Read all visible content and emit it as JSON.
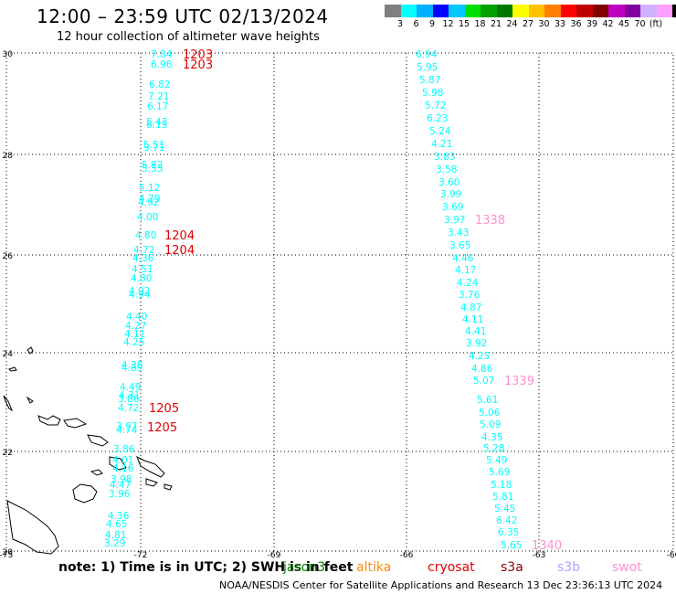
{
  "title": "12:00 – 23:59 UTC 02/13/2024",
  "subtitle": "12 hour collection of altimeter wave heights",
  "colorbar": {
    "colors": [
      "#7f7f7f",
      "#00ffff",
      "#00b0ff",
      "#0000ff",
      "#00c8ff",
      "#00e000",
      "#00a000",
      "#007800",
      "#ffff00",
      "#ffc000",
      "#ff8000",
      "#ff0000",
      "#c00000",
      "#800000",
      "#c000c0",
      "#8000a0",
      "#d0b0ff",
      "#ffa0ff",
      "#000000"
    ],
    "labels": [
      "3",
      "6",
      "9",
      "12",
      "15",
      "18",
      "21",
      "24",
      "27",
      "30",
      "33",
      "36",
      "39",
      "42",
      "45",
      "70",
      "(ft)"
    ]
  },
  "axes": {
    "lat_labels": [
      "30",
      "28",
      "26",
      "24",
      "22",
      "20"
    ],
    "lon_labels": [
      "-75",
      "-72",
      "-69",
      "-66",
      "-63",
      "-60"
    ]
  },
  "tracks": {
    "track1": [
      "7.84",
      "6.96",
      "6.82",
      "7.21",
      "6.17",
      "5.43",
      "6.15",
      "5.51",
      "5.71",
      "5.82",
      "5.53",
      "5.12",
      "4.79",
      "4.92",
      "4.00",
      "4.80",
      "4.72",
      "4.36",
      "4.51",
      "4.80",
      "4.92",
      "4.94",
      "4.40",
      "4.27",
      "4.11",
      "4.25",
      "4.38",
      "4.89",
      "4.49",
      "4.31",
      "3.86",
      "4.72",
      "3.97",
      "4.74",
      "3.86",
      "4.01",
      "4.16",
      "3.98",
      "4.47",
      "3.96",
      "4.36",
      "4.65",
      "4.81",
      "3.29"
    ],
    "track1_times": [
      "1203",
      "1203",
      "1204",
      "1204",
      "1205",
      "1205"
    ],
    "track2": [
      "6.94",
      "5.95",
      "5.87",
      "5.98",
      "5.72",
      "6.23",
      "5.24",
      "4.21",
      "3.83",
      "3.58",
      "3.60",
      "3.99",
      "3.69",
      "3.97",
      "3.43",
      "3.65",
      "4.46",
      "4.17",
      "4.24",
      "3.76",
      "4.87",
      "4.11",
      "4.41",
      "3.92",
      "4.25",
      "4.86",
      "5.07",
      "5.61",
      "5.06",
      "5.09",
      "4.35",
      "5.28",
      "5.49",
      "5.69",
      "5.18",
      "5.81",
      "5.45",
      "6.42",
      "6.35",
      "5.65"
    ],
    "track2_times": [
      "1338",
      "1339",
      "1340"
    ]
  },
  "footer": {
    "note": "note:  1) Time is in UTC; 2) SWH is in feet",
    "missions": [
      {
        "name": "jason3",
        "color": "#008000"
      },
      {
        "name": "altika",
        "color": "#ff8c00"
      },
      {
        "name": "cryosat",
        "color": "#e00000"
      },
      {
        "name": "s3a",
        "color": "#900000"
      },
      {
        "name": "s3b",
        "color": "#b0a0ff"
      },
      {
        "name": "swot",
        "color": "#ff90d0"
      }
    ],
    "credit": "NOAA/NESDIS Center for Satellite Applications and Research    13 Dec 23:36:13 UTC 2024"
  }
}
